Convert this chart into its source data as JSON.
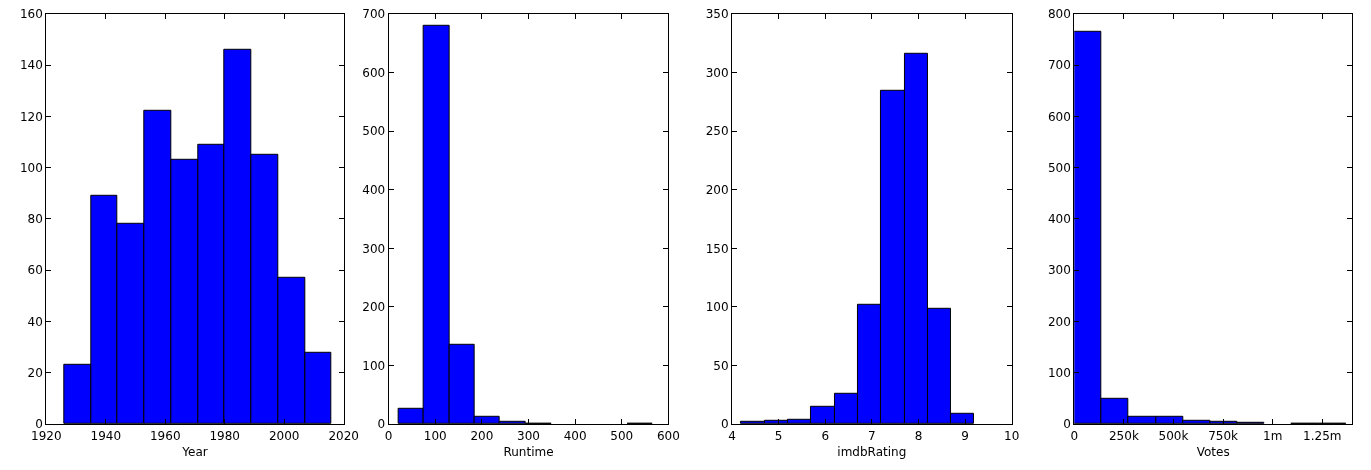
{
  "chart_data": [
    {
      "type": "histogram",
      "xlabel": "Year",
      "color": "#0000ff",
      "bins": [
        1926,
        1935,
        1944,
        1953,
        1962,
        1971,
        1980,
        1989,
        1998,
        2007,
        2016
      ],
      "values": [
        23,
        89,
        78,
        122,
        103,
        109,
        146,
        105,
        57,
        28
      ],
      "xlim": [
        1920,
        2020
      ],
      "xticks": [
        1920,
        1940,
        1960,
        1980,
        2000,
        2020
      ],
      "ylim": [
        0,
        160
      ],
      "yticks": [
        0,
        20,
        40,
        60,
        80,
        100,
        120,
        140,
        160
      ]
    },
    {
      "type": "histogram",
      "xlabel": "Runtime",
      "color": "#0000ff",
      "bins": [
        21,
        76,
        130,
        185,
        239,
        294,
        349,
        403,
        458,
        512,
        567
      ],
      "values": [
        27,
        679,
        135,
        13,
        4,
        1,
        0,
        0,
        0,
        1
      ],
      "xlim": [
        0,
        600
      ],
      "xticks": [
        0,
        100,
        200,
        300,
        400,
        500,
        600
      ],
      "ylim": [
        0,
        700
      ],
      "yticks": [
        0,
        100,
        200,
        300,
        400,
        500,
        600,
        700
      ]
    },
    {
      "type": "histogram",
      "xlabel": "imdbRating",
      "color": "#0000ff",
      "bins": [
        4.2,
        4.7,
        5.2,
        5.7,
        6.2,
        6.7,
        7.2,
        7.7,
        8.2,
        8.7,
        9.2
      ],
      "values": [
        2,
        3,
        4,
        15,
        26,
        102,
        284,
        316,
        98,
        9
      ],
      "xlim": [
        4,
        10
      ],
      "xticks": [
        4,
        5,
        6,
        7,
        8,
        9,
        10
      ],
      "ylim": [
        0,
        350
      ],
      "yticks": [
        0,
        50,
        100,
        150,
        200,
        250,
        300,
        350
      ]
    },
    {
      "type": "histogram",
      "xlabel": "Votes",
      "color": "#0000ff",
      "bins": [
        0,
        137000,
        274000,
        411000,
        548000,
        685000,
        822000,
        959000,
        1096000,
        1233000,
        1370000
      ],
      "values": [
        765,
        50,
        14,
        14,
        7,
        5,
        3,
        0,
        1,
        1
      ],
      "xlim": [
        0,
        1400000
      ],
      "xticks": [
        {
          "value": 0,
          "label": "0"
        },
        {
          "value": 250000,
          "label": "250k"
        },
        {
          "value": 500000,
          "label": "500k"
        },
        {
          "value": 750000,
          "label": "750k"
        },
        {
          "value": 1000000,
          "label": "1m"
        },
        {
          "value": 1250000,
          "label": "1.25m"
        }
      ],
      "ylim": [
        0,
        800
      ],
      "yticks": [
        0,
        100,
        200,
        300,
        400,
        500,
        600,
        700,
        800
      ]
    }
  ]
}
